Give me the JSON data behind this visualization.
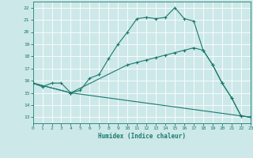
{
  "xlabel": "Humidex (Indice chaleur)",
  "xlim": [
    0,
    23
  ],
  "ylim": [
    12.5,
    22.5
  ],
  "yticks": [
    13,
    14,
    15,
    16,
    17,
    18,
    19,
    20,
    21,
    22
  ],
  "xticks": [
    0,
    1,
    2,
    3,
    4,
    5,
    6,
    7,
    8,
    9,
    10,
    11,
    12,
    13,
    14,
    15,
    16,
    17,
    18,
    19,
    20,
    21,
    22,
    23
  ],
  "bg_color": "#cde8e8",
  "grid_color": "#ffffff",
  "line_color": "#1a7a6e",
  "line1_x": [
    0,
    1,
    2,
    3,
    4,
    5,
    6,
    7,
    8,
    9,
    10,
    11,
    12,
    13,
    14,
    15,
    16,
    17,
    18,
    19,
    20,
    21,
    22,
    23
  ],
  "line1_y": [
    15.8,
    15.5,
    15.8,
    15.8,
    15.0,
    15.2,
    16.2,
    16.5,
    17.8,
    19.0,
    20.0,
    21.1,
    21.2,
    21.1,
    21.2,
    22.0,
    21.1,
    20.9,
    18.5,
    17.3,
    15.8,
    14.6,
    13.1,
    13.0
  ],
  "line2_x": [
    0,
    4,
    10,
    11,
    12,
    13,
    14,
    15,
    16,
    17,
    18,
    19,
    20,
    21,
    22,
    23
  ],
  "line2_y": [
    15.8,
    15.0,
    17.3,
    17.5,
    17.7,
    17.9,
    18.1,
    18.3,
    18.5,
    18.7,
    18.5,
    17.3,
    15.8,
    14.6,
    13.1,
    13.0
  ],
  "line3_x": [
    0,
    4,
    23
  ],
  "line3_y": [
    15.8,
    15.0,
    13.0
  ]
}
